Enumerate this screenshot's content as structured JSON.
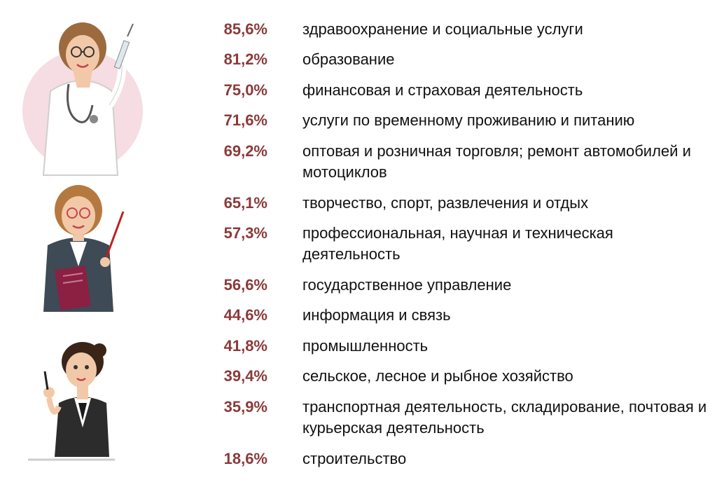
{
  "colors": {
    "percent": "#8B3A3A",
    "text": "#111111",
    "circle": "#F6DCE3"
  },
  "icons": [
    "doctor-figure-icon",
    "teacher-figure-icon",
    "office-worker-figure-icon"
  ],
  "items": [
    {
      "percent": "85,6%",
      "label": "здравоохранение и социальные услуги"
    },
    {
      "percent": "81,2%",
      "label": "образование"
    },
    {
      "percent": "75,0%",
      "label": "финансовая и страховая деятельность"
    },
    {
      "percent": "71,6%",
      "label": "услуги по временному проживанию и питанию"
    },
    {
      "percent": "69,2%",
      "label": "оптовая и розничная торговля; ремонт автомобилей и мотоциклов"
    },
    {
      "percent": "65,1%",
      "label": "творчество, спорт, развлечения и отдых"
    },
    {
      "percent": "57,3%",
      "label": "профессиональная, научная и техническая деятельность"
    },
    {
      "percent": "56,6%",
      "label": "государственное управление"
    },
    {
      "percent": "44,6%",
      "label": "информация и связь"
    },
    {
      "percent": "41,8%",
      "label": "промышленность"
    },
    {
      "percent": "39,4%",
      "label": "сельское, лесное и рыбное хозяйство"
    },
    {
      "percent": "35,9%",
      "label": "транспортная деятельность, складирование, почтовая и курьерская деятельность"
    },
    {
      "percent": "18,6%",
      "label": "строительство"
    }
  ]
}
